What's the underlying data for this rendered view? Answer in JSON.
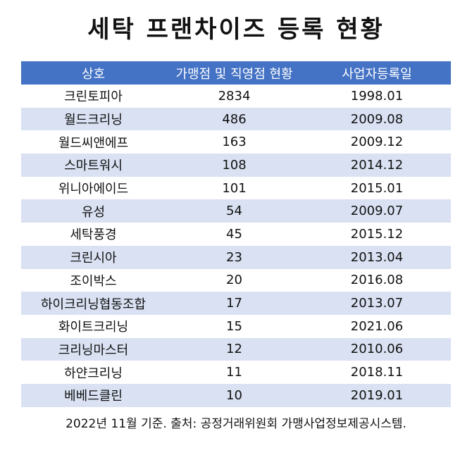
{
  "title": "세탁 프랜차이즈 등록 현황",
  "table": {
    "headers": [
      "상호",
      "가맹점 및 직영점 현황",
      "사업자등록일"
    ],
    "rows": [
      [
        "크린토피아",
        "2834",
        "1998.01"
      ],
      [
        "월드크리닝",
        "486",
        "2009.08"
      ],
      [
        "월드씨앤에프",
        "163",
        "2009.12"
      ],
      [
        "스마트워시",
        "108",
        "2014.12"
      ],
      [
        "위니아에이드",
        "101",
        "2015.01"
      ],
      [
        "유성",
        "54",
        "2009.07"
      ],
      [
        "세탁풍경",
        "45",
        "2015.12"
      ],
      [
        "크린시아",
        "23",
        "2013.04"
      ],
      [
        "조이박스",
        "20",
        "2016.08"
      ],
      [
        "하이크리닝협동조합",
        "17",
        "2013.07"
      ],
      [
        "화이트크리닝",
        "15",
        "2021.06"
      ],
      [
        "크리닝마스터",
        "12",
        "2010.06"
      ],
      [
        "하얀크리닝",
        "11",
        "2018.11"
      ],
      [
        "베베드클린",
        "10",
        "2019.01"
      ]
    ]
  },
  "footer": "2022년 11월 기준. 출처: 공정거래위원회 가맹사업정보제공시스템.",
  "colors": {
    "header_bg": "#4472c4",
    "alt_row_bg": "#d9e1f2"
  }
}
